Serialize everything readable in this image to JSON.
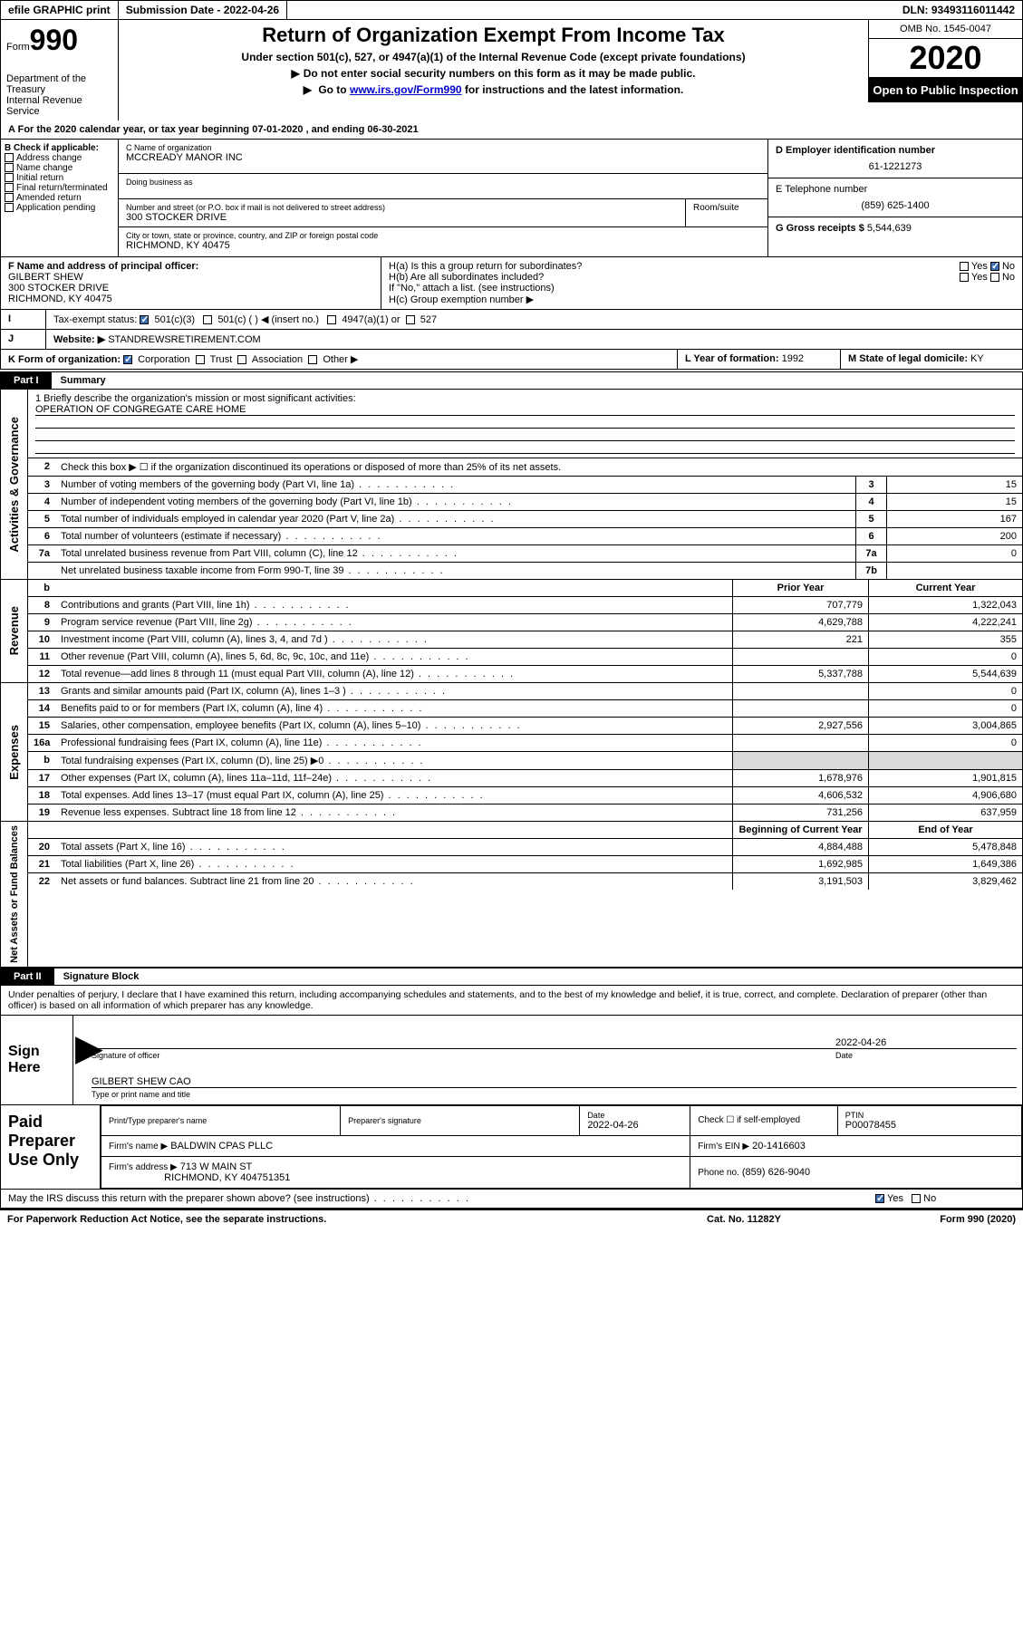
{
  "topbar": {
    "efile": "efile GRAPHIC print",
    "submission": "Submission Date - 2022-04-26",
    "dln": "DLN: 93493116011442"
  },
  "header": {
    "form_label": "Form",
    "form_number": "990",
    "dept": "Department of the Treasury",
    "irs": "Internal Revenue Service",
    "title": "Return of Organization Exempt From Income Tax",
    "sub1": "Under section 501(c), 527, or 4947(a)(1) of the Internal Revenue Code (except private foundations)",
    "sub2": "Do not enter social security numbers on this form as it may be made public.",
    "sub3_pre": "Go to ",
    "sub3_link": "www.irs.gov/Form990",
    "sub3_post": " for instructions and the latest information.",
    "omb": "OMB No. 1545-0047",
    "year": "2020",
    "inspect": "Open to Public Inspection"
  },
  "lineA": "For the 2020 calendar year, or tax year beginning 07-01-2020    , and ending 06-30-2021",
  "boxB": {
    "hdr": "B Check if applicable:",
    "items": [
      "Address change",
      "Name change",
      "Initial return",
      "Final return/terminated",
      "Amended return",
      "Application pending"
    ]
  },
  "boxC": {
    "name_lbl": "C Name of organization",
    "name": "MCCREADY MANOR INC",
    "dba_lbl": "Doing business as",
    "addr_lbl": "Number and street (or P.O. box if mail is not delivered to street address)",
    "addr": "300 STOCKER DRIVE",
    "room_lbl": "Room/suite",
    "city_lbl": "City or town, state or province, country, and ZIP or foreign postal code",
    "city": "RICHMOND, KY  40475"
  },
  "boxD": {
    "ein_lbl": "D Employer identification number",
    "ein": "61-1221273",
    "tel_lbl": "E Telephone number",
    "tel": "(859) 625-1400",
    "gross_lbl": "G Gross receipts $",
    "gross": "5,544,639"
  },
  "boxF": {
    "lbl": "F  Name and address of principal officer:",
    "name": "GILBERT SHEW",
    "addr1": "300 STOCKER DRIVE",
    "addr2": "RICHMOND, KY  40475"
  },
  "boxH": {
    "ha": "H(a)  Is this a group return for subordinates?",
    "hb": "H(b)  Are all subordinates included?",
    "hb2": "If \"No,\" attach a list. (see instructions)",
    "hc": "H(c)  Group exemption number ▶"
  },
  "rowI": {
    "lbl": "Tax-exempt status:",
    "c501c3": "501(c)(3)",
    "c501c": "501(c) (   ) ◀ (insert no.)",
    "c4947": "4947(a)(1) or",
    "c527": "527"
  },
  "rowJ": {
    "lbl": "Website: ▶",
    "val": "STANDREWSRETIREMENT.COM"
  },
  "rowK": {
    "lbl": "K Form of organization:",
    "opts": [
      "Corporation",
      "Trust",
      "Association",
      "Other ▶"
    ]
  },
  "rowL": {
    "lbl": "L Year of formation:",
    "val": "1992"
  },
  "rowM": {
    "lbl": "M State of legal domicile:",
    "val": "KY"
  },
  "part1": {
    "tag": "Part I",
    "title": "Summary"
  },
  "mission": {
    "lbl": "1  Briefly describe the organization's mission or most significant activities:",
    "text": "OPERATION OF CONGREGATE CARE HOME"
  },
  "activities": {
    "label": "Activities & Governance",
    "line2": "Check this box ▶ ☐  if the organization discontinued its operations or disposed of more than 25% of its net assets.",
    "rows": [
      {
        "n": "3",
        "t": "Number of voting members of the governing body (Part VI, line 1a)",
        "b": "3",
        "v": "15"
      },
      {
        "n": "4",
        "t": "Number of independent voting members of the governing body (Part VI, line 1b)",
        "b": "4",
        "v": "15"
      },
      {
        "n": "5",
        "t": "Total number of individuals employed in calendar year 2020 (Part V, line 2a)",
        "b": "5",
        "v": "167"
      },
      {
        "n": "6",
        "t": "Total number of volunteers (estimate if necessary)",
        "b": "6",
        "v": "200"
      },
      {
        "n": "7a",
        "t": "Total unrelated business revenue from Part VIII, column (C), line 12",
        "b": "7a",
        "v": "0"
      },
      {
        "n": "",
        "t": "Net unrelated business taxable income from Form 990-T, line 39",
        "b": "7b",
        "v": ""
      }
    ]
  },
  "revenue": {
    "label": "Revenue",
    "hdr_b": "b",
    "hdr_py": "Prior Year",
    "hdr_cy": "Current Year",
    "rows": [
      {
        "n": "8",
        "t": "Contributions and grants (Part VIII, line 1h)",
        "py": "707,779",
        "cy": "1,322,043"
      },
      {
        "n": "9",
        "t": "Program service revenue (Part VIII, line 2g)",
        "py": "4,629,788",
        "cy": "4,222,241"
      },
      {
        "n": "10",
        "t": "Investment income (Part VIII, column (A), lines 3, 4, and 7d )",
        "py": "221",
        "cy": "355"
      },
      {
        "n": "11",
        "t": "Other revenue (Part VIII, column (A), lines 5, 6d, 8c, 9c, 10c, and 11e)",
        "py": "",
        "cy": "0"
      },
      {
        "n": "12",
        "t": "Total revenue—add lines 8 through 11 (must equal Part VIII, column (A), line 12)",
        "py": "5,337,788",
        "cy": "5,544,639"
      }
    ]
  },
  "expenses": {
    "label": "Expenses",
    "rows": [
      {
        "n": "13",
        "t": "Grants and similar amounts paid (Part IX, column (A), lines 1–3 )",
        "py": "",
        "cy": "0"
      },
      {
        "n": "14",
        "t": "Benefits paid to or for members (Part IX, column (A), line 4)",
        "py": "",
        "cy": "0"
      },
      {
        "n": "15",
        "t": "Salaries, other compensation, employee benefits (Part IX, column (A), lines 5–10)",
        "py": "2,927,556",
        "cy": "3,004,865"
      },
      {
        "n": "16a",
        "t": "Professional fundraising fees (Part IX, column (A), line 11e)",
        "py": "",
        "cy": "0"
      },
      {
        "n": "b",
        "t": "Total fundraising expenses (Part IX, column (D), line 25) ▶0",
        "py": "__shade__",
        "cy": "__shade__"
      },
      {
        "n": "17",
        "t": "Other expenses (Part IX, column (A), lines 11a–11d, 11f–24e)",
        "py": "1,678,976",
        "cy": "1,901,815"
      },
      {
        "n": "18",
        "t": "Total expenses. Add lines 13–17 (must equal Part IX, column (A), line 25)",
        "py": "4,606,532",
        "cy": "4,906,680"
      },
      {
        "n": "19",
        "t": "Revenue less expenses. Subtract line 18 from line 12",
        "py": "731,256",
        "cy": "637,959"
      }
    ]
  },
  "netassets": {
    "label": "Net Assets or Fund Balances",
    "hdr_py": "Beginning of Current Year",
    "hdr_cy": "End of Year",
    "rows": [
      {
        "n": "20",
        "t": "Total assets (Part X, line 16)",
        "py": "4,884,488",
        "cy": "5,478,848"
      },
      {
        "n": "21",
        "t": "Total liabilities (Part X, line 26)",
        "py": "1,692,985",
        "cy": "1,649,386"
      },
      {
        "n": "22",
        "t": "Net assets or fund balances. Subtract line 21 from line 20",
        "py": "3,191,503",
        "cy": "3,829,462"
      }
    ]
  },
  "part2": {
    "tag": "Part II",
    "title": "Signature Block"
  },
  "penalties": "Under penalties of perjury, I declare that I have examined this return, including accompanying schedules and statements, and to the best of my knowledge and belief, it is true, correct, and complete. Declaration of preparer (other than officer) is based on all information of which preparer has any knowledge.",
  "sign": {
    "here": "Sign Here",
    "sig_lbl": "Signature of officer",
    "date": "2022-04-26",
    "date_lbl": "Date",
    "name": "GILBERT SHEW  CAO",
    "name_lbl": "Type or print name and title"
  },
  "paid": {
    "label": "Paid Preparer Use Only",
    "r1": {
      "a": "Print/Type preparer's name",
      "b": "Preparer's signature",
      "c": "Date",
      "cv": "2022-04-26",
      "d": "Check ☐ if self-employed",
      "e": "PTIN",
      "ev": "P00078455"
    },
    "r2": {
      "a": "Firm's name    ▶",
      "av": "BALDWIN CPAS PLLC",
      "b": "Firm's EIN ▶",
      "bv": "20-1416603"
    },
    "r3": {
      "a": "Firm's address ▶",
      "av1": "713 W MAIN ST",
      "av2": "RICHMOND, KY  404751351",
      "b": "Phone no.",
      "bv": "(859) 626-9040"
    }
  },
  "discuss": "May the IRS discuss this return with the preparer shown above? (see instructions)",
  "footer": {
    "a": "For Paperwork Reduction Act Notice, see the separate instructions.",
    "b": "Cat. No. 11282Y",
    "c": "Form 990 (2020)"
  },
  "yn": {
    "yes": "Yes",
    "no": "No"
  }
}
